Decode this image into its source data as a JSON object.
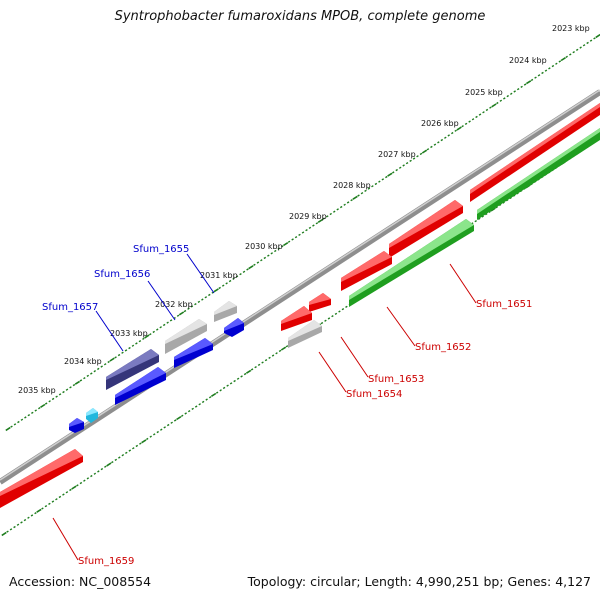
{
  "title": "Syntrophobacter fumaroxidans MPOB, complete genome",
  "footer": {
    "accession": "Accession: NC_008554",
    "summary": "Topology: circular; Length: 4,990,251 bp; Genes: 4,127"
  },
  "colors": {
    "backbone": "#8e8e8e",
    "ruler": "#1e7d1e",
    "forward_gene": "#ee0000",
    "forward_label": "#cc0000",
    "reverse_gene": "#0000ee",
    "reverse_label": "#0000cc",
    "rna_gene": "#c8c8c8",
    "forward_cds_green": "#22aa22",
    "highlight_gene": "#3b3b8c",
    "small_gene": "#33ccee"
  },
  "ruler_labels": [
    "2023 kbp",
    "2024 kbp",
    "2025 kbp",
    "2026 kbp",
    "2027 kbp",
    "2028 kbp",
    "2029 kbp",
    "2030 kbp",
    "2031 kbp",
    "2032 kbp",
    "2033 kbp",
    "2034 kbp",
    "2035 kbp"
  ],
  "gene_labels": {
    "forward": [
      "Sfum_1651",
      "Sfum_1652",
      "Sfum_1653",
      "Sfum_1654",
      "Sfum_1659"
    ],
    "reverse": [
      "Sfum_1655",
      "Sfum_1656",
      "Sfum_1657"
    ]
  }
}
